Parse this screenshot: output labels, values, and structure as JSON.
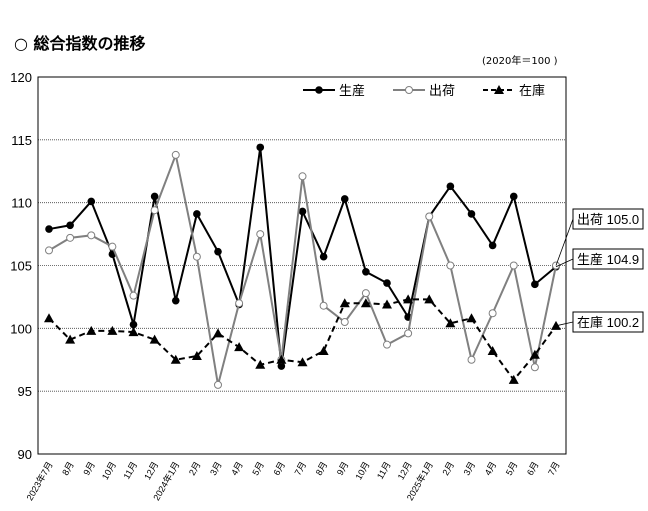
{
  "header": {
    "title": "○ 総合指数の推移",
    "base_note": "(2020年＝100 )"
  },
  "chart_data": {
    "type": "line",
    "title": "",
    "xlabel": "",
    "ylabel": "",
    "ylim": [
      90,
      120
    ],
    "yticks": [
      90,
      95,
      100,
      105,
      110,
      115,
      120
    ],
    "grid": true,
    "legend_placement": "top-right",
    "categories": [
      "2023年7月",
      "8月",
      "9月",
      "10月",
      "11月",
      "12月",
      "2024年1月",
      "2月",
      "3月",
      "4月",
      "5月",
      "6月",
      "7月",
      "8月",
      "9月",
      "10月",
      "11月",
      "12月",
      "2025年1月",
      "2月",
      "3月",
      "4月",
      "5月",
      "6月",
      "7月"
    ],
    "series": [
      {
        "name": "生産",
        "color": "#000000",
        "marker": "filled-circle",
        "dash": false,
        "values": [
          107.9,
          108.2,
          110.1,
          105.9,
          100.3,
          110.5,
          102.2,
          109.1,
          106.1,
          101.9,
          114.4,
          97.0,
          109.3,
          105.7,
          110.3,
          104.5,
          103.6,
          100.9,
          108.9,
          111.3,
          109.1,
          106.6,
          110.5,
          103.5,
          104.9
        ]
      },
      {
        "name": "出荷",
        "color": "#808080",
        "marker": "open-circle",
        "dash": false,
        "values": [
          106.2,
          107.2,
          107.4,
          106.5,
          102.6,
          109.4,
          113.8,
          105.7,
          95.5,
          102.0,
          107.5,
          97.5,
          112.1,
          101.8,
          100.5,
          102.8,
          98.7,
          99.6,
          108.9,
          105.0,
          97.5,
          101.2,
          105.0,
          96.9,
          105.0
        ]
      },
      {
        "name": "在庫",
        "color": "#000000",
        "marker": "filled-triangle",
        "dash": true,
        "values": [
          100.8,
          99.1,
          99.8,
          99.8,
          99.7,
          99.1,
          97.5,
          97.8,
          99.6,
          98.5,
          97.1,
          97.5,
          97.3,
          98.2,
          102.0,
          102.0,
          101.9,
          102.3,
          102.3,
          100.4,
          100.8,
          98.2,
          95.9,
          97.9,
          100.2
        ]
      }
    ],
    "annotations": [
      {
        "series": "出荷",
        "text": "出荷 105.0"
      },
      {
        "series": "生産",
        "text": "生産 104.9"
      },
      {
        "series": "在庫",
        "text": "在庫 100.2"
      }
    ]
  }
}
